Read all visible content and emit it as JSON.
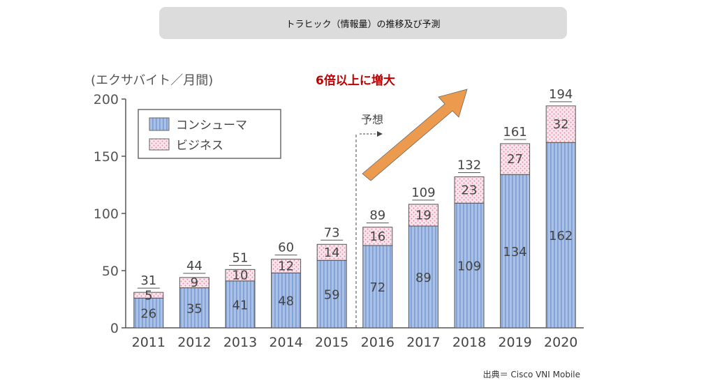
{
  "title_banner": "トラヒック（情報量）の推移及び予測",
  "source": "出典＝ Cisco VNI Mobile",
  "colors": {
    "consumer_fill": "#a9c1e6",
    "consumer_stripe": "#6d8fcc",
    "business_fill": "#fbe4ec",
    "business_dot": "#e48aa6",
    "arrow": "#ec9a4e",
    "callout": "#c00000",
    "axis": "#555555"
  },
  "chart_data": {
    "type": "bar",
    "stacked": true,
    "ylabel": "(エクサバイト／月間)",
    "ylim": [
      0,
      200
    ],
    "yticks": [
      0,
      50,
      100,
      150,
      200
    ],
    "categories": [
      "2011",
      "2012",
      "2013",
      "2014",
      "2015",
      "2016",
      "2017",
      "2018",
      "2019",
      "2020"
    ],
    "series": [
      {
        "name": "コンシューマ",
        "values": [
          26,
          35,
          41,
          48,
          59,
          72,
          89,
          109,
          134,
          162
        ]
      },
      {
        "name": "ビジネス",
        "values": [
          5,
          9,
          10,
          12,
          14,
          16,
          19,
          23,
          27,
          32
        ]
      }
    ],
    "totals": [
      "31",
      "44",
      "51",
      "60",
      "73",
      "89",
      "109",
      "132",
      "161",
      "194"
    ],
    "legend_position": "top-left",
    "forecast_label": "予想",
    "forecast_start_category": "2016",
    "callout": "6倍以上に増大"
  }
}
